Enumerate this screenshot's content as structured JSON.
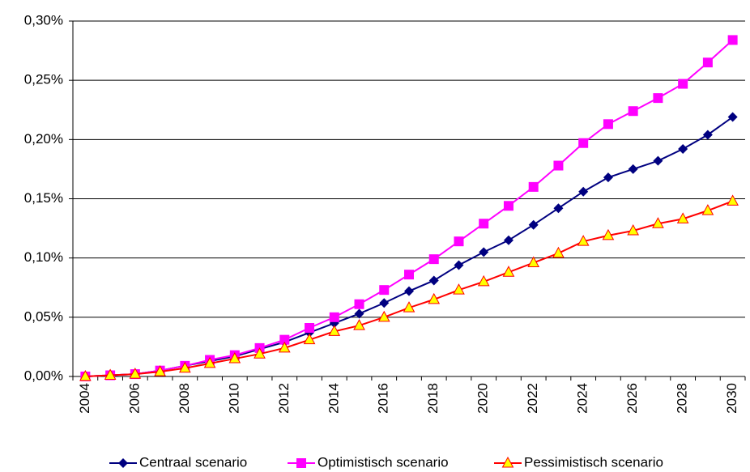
{
  "chart_data": {
    "type": "line",
    "categories": [
      "2004",
      null,
      "2006",
      null,
      "2008",
      null,
      "2010",
      null,
      "2012",
      null,
      "2014",
      null,
      "2016",
      null,
      "2018",
      null,
      "2020",
      null,
      "2022",
      null,
      "2024",
      null,
      "2026",
      null,
      "2028",
      null,
      "2030"
    ],
    "series": [
      {
        "name": "Centraal scenario",
        "color": "#000080",
        "marker": "diamond",
        "values": [
          0,
          0.001,
          0.002,
          0.005,
          0.009,
          0.013,
          0.017,
          0.023,
          0.029,
          0.037,
          0.045,
          0.053,
          0.062,
          0.072,
          0.081,
          0.094,
          0.105,
          0.115,
          0.128,
          0.142,
          0.156,
          0.168,
          0.175,
          0.182,
          0.192,
          0.204,
          0.219
        ]
      },
      {
        "name": "Optimistisch scenario",
        "color": "#ff00ff",
        "marker": "square",
        "values": [
          0,
          0.001,
          0.002,
          0.005,
          0.009,
          0.014,
          0.018,
          0.024,
          0.031,
          0.041,
          0.05,
          0.061,
          0.073,
          0.086,
          0.099,
          0.114,
          0.129,
          0.144,
          0.16,
          0.178,
          0.197,
          0.213,
          0.224,
          0.235,
          0.247,
          0.265,
          0.284
        ]
      },
      {
        "name": "Pessimistisch scenario",
        "color": "#ff0000",
        "marker": "triangle",
        "marker_fill": "#ffff00",
        "values": [
          0,
          0.001,
          0.002,
          0.004,
          0.007,
          0.011,
          0.015,
          0.019,
          0.024,
          0.031,
          0.038,
          0.043,
          0.05,
          0.058,
          0.065,
          0.073,
          0.08,
          0.088,
          0.096,
          0.104,
          0.114,
          0.119,
          0.123,
          0.129,
          0.133,
          0.14,
          0.148
        ]
      }
    ],
    "ylim": [
      0,
      0.3
    ],
    "yticks": [
      {
        "value": 0,
        "label": "0,00%"
      },
      {
        "value": 0.05,
        "label": "0,05%"
      },
      {
        "value": 0.1,
        "label": "0,10%"
      },
      {
        "value": 0.15,
        "label": "0,15%"
      },
      {
        "value": 0.2,
        "label": "0,20%"
      },
      {
        "value": 0.25,
        "label": "0,25%"
      },
      {
        "value": 0.3,
        "label": "0,30%"
      }
    ],
    "grid": true,
    "legend": "bottom"
  }
}
